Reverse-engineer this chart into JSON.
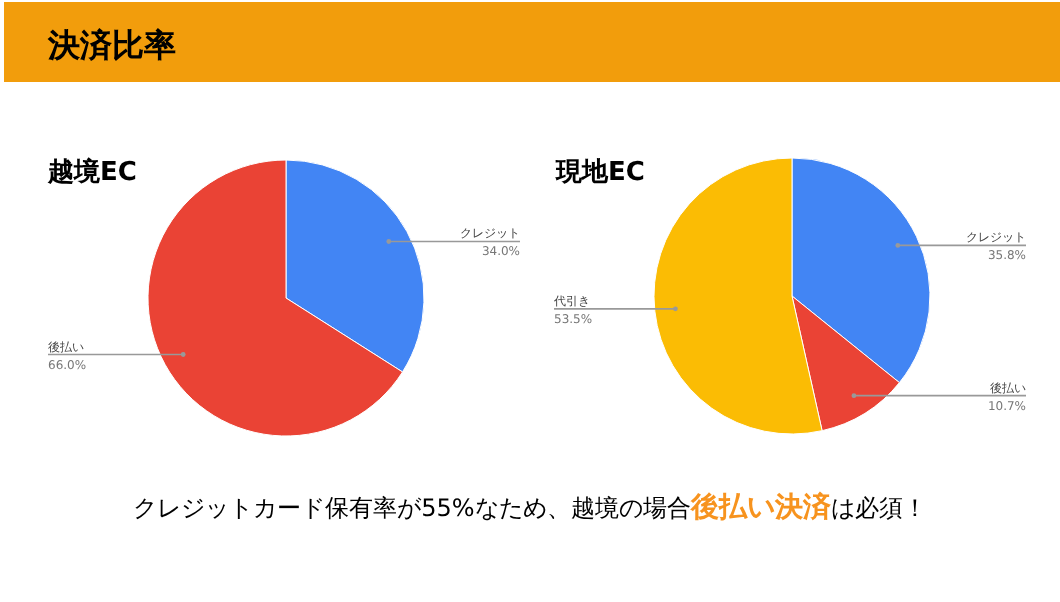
{
  "chart_data": [
    {
      "type": "other",
      "title": "決済比率",
      "annotations": [
        "クレジットカード保有率が55%なため、越境の場合",
        "後払い決済",
        "は必須！"
      ]
    },
    {
      "type": "pie",
      "title": "越境EC",
      "categories": [
        "クレジット",
        "後払い"
      ],
      "values": [
        34.0,
        66.0
      ],
      "colors": [
        "#4285f4",
        "#ea4335"
      ],
      "value_labels": [
        "34.0%",
        "66.0%"
      ]
    },
    {
      "type": "pie",
      "title": "現地EC",
      "categories": [
        "クレジット",
        "後払い",
        "代引き"
      ],
      "values": [
        35.8,
        10.7,
        53.5
      ],
      "colors": [
        "#4285f4",
        "#ea4335",
        "#fbbc04"
      ],
      "value_labels": [
        "35.8%",
        "10.7%",
        "53.5%"
      ]
    }
  ]
}
